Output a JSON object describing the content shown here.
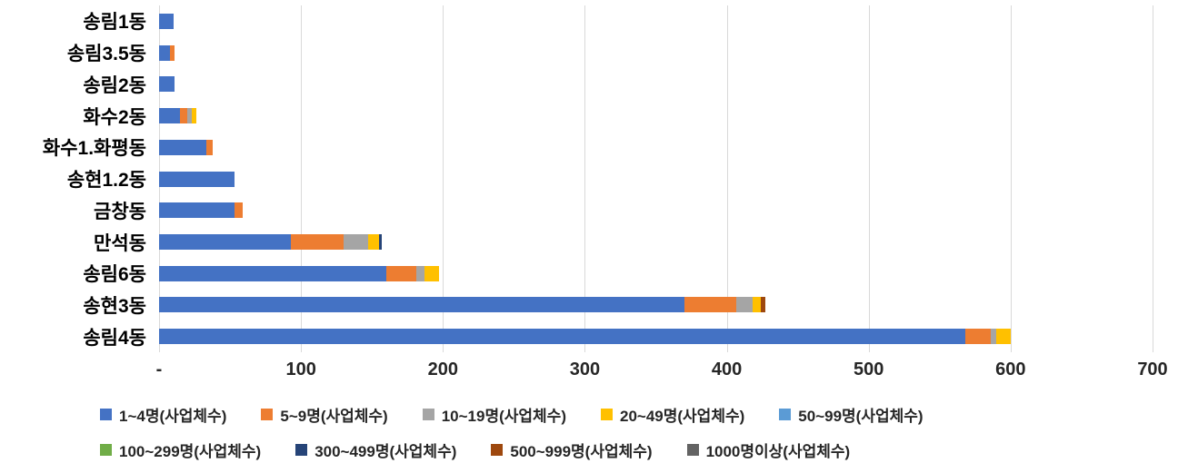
{
  "chart_data": {
    "type": "bar",
    "orientation": "horizontal",
    "stacked": true,
    "title": "",
    "xlabel": "",
    "ylabel": "",
    "xlim": [
      0,
      700
    ],
    "grid": true,
    "legend_position": "bottom",
    "x_ticks": [
      "-",
      "100",
      "200",
      "300",
      "400",
      "500",
      "600",
      "700"
    ],
    "categories": [
      "송림1동",
      "송림3.5동",
      "송림2동",
      "화수2동",
      "화수1.화평동",
      "송현1.2동",
      "금창동",
      "만석동",
      "송림6동",
      "송현3동",
      "송림4동"
    ],
    "series": [
      {
        "name": "1~4명(사업체수)",
        "color": "#4472C4",
        "values": [
          10,
          8,
          11,
          15,
          33,
          53,
          53,
          93,
          160,
          370,
          568
        ]
      },
      {
        "name": "5~9명(사업체수)",
        "color": "#ED7D31",
        "values": [
          0,
          3,
          0,
          5,
          5,
          0,
          6,
          37,
          21,
          37,
          18
        ]
      },
      {
        "name": "10~19명(사업체수)",
        "color": "#A5A5A5",
        "values": [
          0,
          0,
          0,
          3,
          0,
          0,
          0,
          17,
          6,
          11,
          4
        ]
      },
      {
        "name": "20~49명(사업체수)",
        "color": "#FFC000",
        "values": [
          0,
          0,
          0,
          3,
          0,
          0,
          0,
          8,
          10,
          6,
          10
        ]
      },
      {
        "name": "50~99명(사업체수)",
        "color": "#5B9BD5",
        "values": [
          0,
          0,
          0,
          0,
          0,
          0,
          0,
          0,
          0,
          0,
          0
        ]
      },
      {
        "name": "100~299명(사업체수)",
        "color": "#70AD47",
        "values": [
          0,
          0,
          0,
          0,
          0,
          0,
          0,
          0,
          0,
          0,
          0
        ]
      },
      {
        "name": "300~499명(사업체수)",
        "color": "#264478",
        "values": [
          0,
          0,
          0,
          0,
          0,
          0,
          0,
          2,
          0,
          0,
          0
        ]
      },
      {
        "name": "500~999명(사업체수)",
        "color": "#9E480E",
        "values": [
          0,
          0,
          0,
          0,
          0,
          0,
          0,
          0,
          0,
          3,
          0
        ]
      },
      {
        "name": "1000명이상(사업체수)",
        "color": "#636363",
        "values": [
          0,
          0,
          0,
          0,
          0,
          0,
          0,
          0,
          0,
          0,
          0
        ]
      }
    ],
    "legend_rows": [
      [
        0,
        1,
        2,
        3,
        4
      ],
      [
        5,
        6,
        7,
        8
      ]
    ]
  }
}
